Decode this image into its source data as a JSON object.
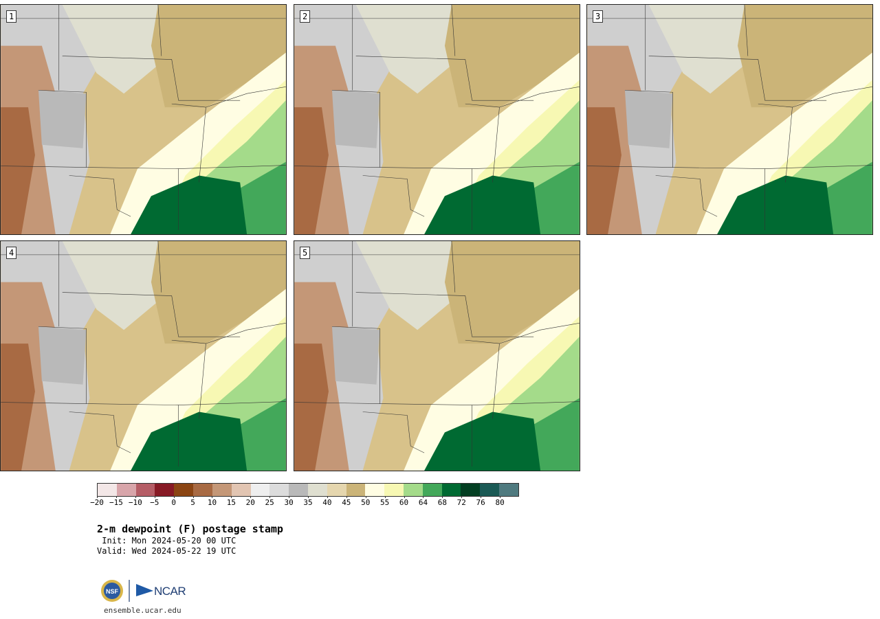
{
  "panels": [
    {
      "label": "1"
    },
    {
      "label": "2"
    },
    {
      "label": "3"
    },
    {
      "label": "4"
    },
    {
      "label": "5"
    }
  ],
  "colorbar": {
    "colors": [
      "#f3e7e7",
      "#d8a5aa",
      "#b55d66",
      "#871a25",
      "#8b4513",
      "#a86a43",
      "#c49777",
      "#e2c5b2",
      "#efefef",
      "#dcdcdc",
      "#b9b9b9",
      "#dfdfd0",
      "#e5d6ae",
      "#cbb478",
      "#fffde3",
      "#f7f8b3",
      "#a4db8a",
      "#43a85a",
      "#006a32",
      "#033f22",
      "#1b5a55",
      "#4f7a7f"
    ],
    "tick_labels": [
      "−20",
      "−15",
      "−10",
      "−5",
      "0",
      "5",
      "10",
      "15",
      "20",
      "25",
      "30",
      "35",
      "40",
      "45",
      "50",
      "55",
      "60",
      "64",
      "68",
      "72",
      "76",
      "80"
    ]
  },
  "title": "2-m dewpoint (F) postage stamp",
  "init": " Init: Mon 2024-05-20 00 UTC",
  "valid": "Valid: Wed 2024-05-22 19 UTC",
  "logos": {
    "nsf": "NSF",
    "ncar": "NCAR"
  },
  "site": "ensemble.ucar.edu"
}
